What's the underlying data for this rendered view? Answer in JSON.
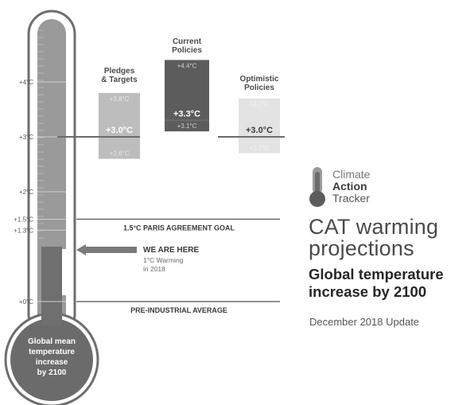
{
  "chart_data": {
    "type": "bar",
    "title": "CAT warming projections",
    "subtitle": "Global temperature increase by 2100",
    "update": "December 2018 Update",
    "unit": "°C",
    "scale_ticks": [
      {
        "value": 0,
        "label": "+0°C"
      },
      {
        "value": 1.3,
        "label": "+1.3°C"
      },
      {
        "value": 1.5,
        "label": "+1.5°C"
      },
      {
        "value": 2,
        "label": "+2°C"
      },
      {
        "value": 3,
        "label": "+3°C"
      },
      {
        "value": 4,
        "label": "+4°C"
      }
    ],
    "scenarios": [
      {
        "name": "Pledges & Targets",
        "low": 2.6,
        "median": 3.0,
        "high": 3.8,
        "low_label": "+2.6°C",
        "median_label": "+3.0°C",
        "high_label": "+3.8°C"
      },
      {
        "name": "Current Policies",
        "low": 3.1,
        "median": 3.3,
        "high": 4.4,
        "low_label": "+3.1°C",
        "median_label": "+3.3°C",
        "high_label": "+4.4°C"
      },
      {
        "name": "Optimistic Policies",
        "low": 2.7,
        "median": 3.0,
        "high": 3.7,
        "low_label": "+2.7°C",
        "median_label": "+3.0°C",
        "high_label": "+3.7°C"
      }
    ],
    "reference_lines": [
      {
        "value": 1.5,
        "label": "1.5°C PARIS AGREEMENT GOAL"
      },
      {
        "value": 0,
        "label": "PRE-INDUSTRIAL AVERAGE"
      }
    ],
    "current": {
      "value": 1.0,
      "label": "WE ARE HERE",
      "note_line1": "1°C Warming",
      "note_line2": "in 2018"
    },
    "bulb_label": [
      "Global mean",
      "temperature",
      "increase",
      "by 2100"
    ],
    "colors": {
      "outline": "#6e6e6e",
      "tube": "#9a9a9a",
      "mercury": "#6f6f6f",
      "bulb": "#6b6b6b",
      "pledges_box": "#bdbdbd",
      "current_box": "#5c5c5c",
      "optimistic_box": "#e3e3e3",
      "line": "#6b6b6b",
      "arrow": "#7a7a7a"
    }
  },
  "logo": {
    "line1": "Climate",
    "line2": "Action",
    "line3": "Tracker",
    "icon": "thermometer-icon"
  }
}
